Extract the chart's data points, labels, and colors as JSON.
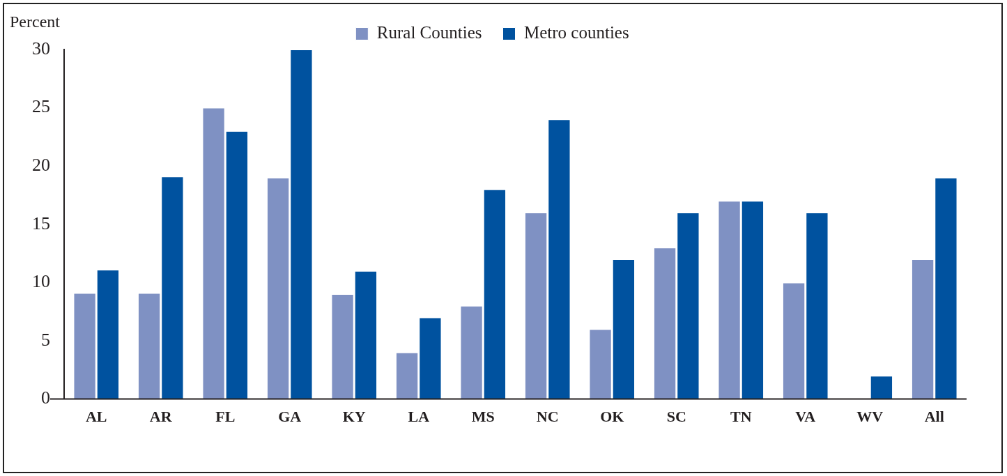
{
  "chart_data": {
    "type": "bar",
    "ylabel": "Percent",
    "categories": [
      "AL",
      "AR",
      "FL",
      "GA",
      "KY",
      "LA",
      "MS",
      "NC",
      "OK",
      "SC",
      "TN",
      "VA",
      "WV",
      "All"
    ],
    "series": [
      {
        "name": "Rural Counties",
        "color": "#7f91c3",
        "values": [
          9.1,
          9.1,
          25.0,
          19.0,
          9.0,
          4.0,
          8.0,
          16.0,
          6.0,
          13.0,
          17.0,
          10.0,
          0,
          12.0
        ]
      },
      {
        "name": "Metro counties",
        "color": "#00529f",
        "values": [
          11.1,
          19.1,
          23.0,
          30.0,
          11.0,
          7.0,
          18.0,
          24.0,
          12.0,
          16.0,
          17.0,
          16.0,
          2.0,
          19.0
        ]
      }
    ],
    "ylim": [
      0,
      30
    ],
    "yticks": [
      0,
      5,
      10,
      15,
      20,
      25,
      30
    ],
    "grid": false,
    "legend": "top"
  }
}
